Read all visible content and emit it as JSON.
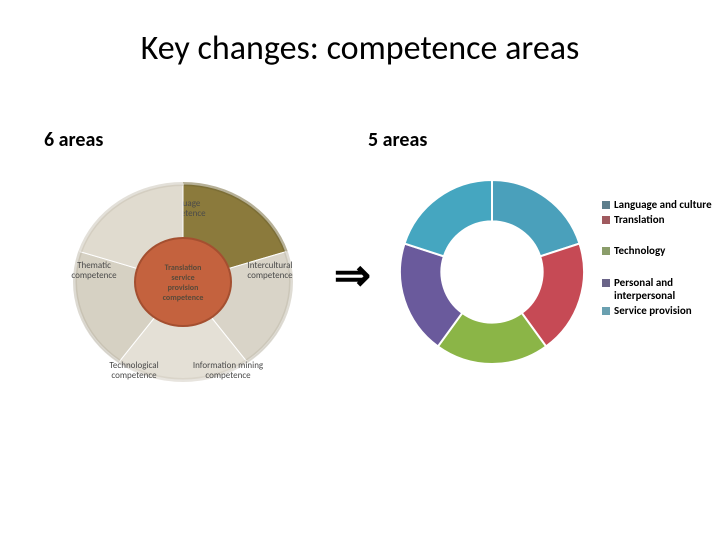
{
  "title": "Key changes: competence areas",
  "left": {
    "heading": "6 areas",
    "outer_segments": [
      {
        "label_l1": "Language",
        "label_l2": "competence",
        "color": "#8b7a3c",
        "shade": "#6e6130"
      },
      {
        "label_l1": "Intercultural",
        "label_l2": "competence",
        "color": "#d9d4c8",
        "shade": "#bfb9aa"
      },
      {
        "label_l1": "Information mining",
        "label_l2": "competence",
        "color": "#e4e0d6",
        "shade": "#cfcabd"
      },
      {
        "label_l1": "Technological",
        "label_l2": "competence",
        "color": "#d6d1c3",
        "shade": "#bcb6a5"
      },
      {
        "label_l1": "Thematic",
        "label_l2": "competence",
        "color": "#e0dbcf",
        "shade": "#c8c2b3"
      }
    ],
    "center": {
      "label_l1": "Translation",
      "label_l2": "service",
      "label_l3": "provision",
      "label_l4": "competence",
      "color": "#c4623e",
      "shade": "#a44f30"
    },
    "background": "#ffffff"
  },
  "right": {
    "heading": "5 areas",
    "donut": {
      "type": "donut",
      "inner_ratio": 0.55,
      "slices": [
        {
          "label": "Language and culture",
          "value": 1,
          "color": "#4aa0bb",
          "swatch": "#5d7e8c"
        },
        {
          "label": "Translation",
          "value": 1,
          "color": "#c64a55",
          "swatch": "#a05a5f"
        },
        {
          "label": "Technology",
          "value": 1,
          "color": "#8bb547",
          "swatch": "#8a9d6a"
        },
        {
          "label": "Personal and interpersonal",
          "value": 1,
          "color": "#6a5a9c",
          "swatch": "#6a6488"
        },
        {
          "label": "Service provision",
          "value": 1,
          "color": "#45a6c0",
          "swatch": "#6aa0b0"
        }
      ],
      "start_angle_deg": -90,
      "background": "#ffffff"
    }
  },
  "arrow_glyph": "⇒",
  "legend_groups": [
    [
      0,
      1
    ],
    [
      2
    ],
    [
      3,
      4
    ]
  ]
}
